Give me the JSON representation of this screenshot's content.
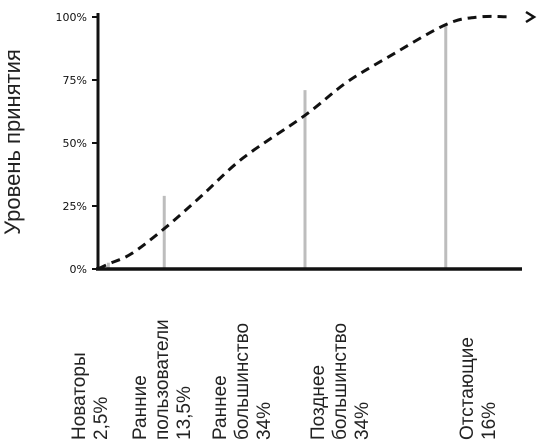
{
  "chart_data": {
    "type": "line",
    "ylabel": "Уровень принятия",
    "y_ticks": [
      "0%",
      "25%",
      "50%",
      "75%",
      "100%"
    ],
    "ylim": [
      0,
      100
    ],
    "curve": [
      {
        "x": 0,
        "y": 0
      },
      {
        "x": 2.5,
        "y": 2
      },
      {
        "x": 8,
        "y": 6
      },
      {
        "x": 16,
        "y": 16
      },
      {
        "x": 25,
        "y": 29
      },
      {
        "x": 35,
        "y": 44
      },
      {
        "x": 50,
        "y": 61
      },
      {
        "x": 60,
        "y": 74
      },
      {
        "x": 70,
        "y": 84
      },
      {
        "x": 84,
        "y": 97
      },
      {
        "x": 92,
        "y": 100
      },
      {
        "x": 100,
        "y": 100
      }
    ],
    "boundaries": [
      {
        "x": 2.5,
        "y": 2.5
      },
      {
        "x": 16,
        "y": 29
      },
      {
        "x": 50,
        "y": 71
      },
      {
        "x": 84,
        "y": 97
      }
    ],
    "categories": [
      {
        "lines": [
          "Новаторы",
          "2,5%"
        ]
      },
      {
        "lines": [
          "Ранние",
          "пользователи",
          "13,5%"
        ]
      },
      {
        "lines": [
          "Раннее",
          "большинство",
          "34%"
        ]
      },
      {
        "lines": [
          "Позднее",
          "большинство",
          "34%"
        ]
      },
      {
        "lines": [
          "Отстающие",
          "16%"
        ]
      }
    ]
  }
}
